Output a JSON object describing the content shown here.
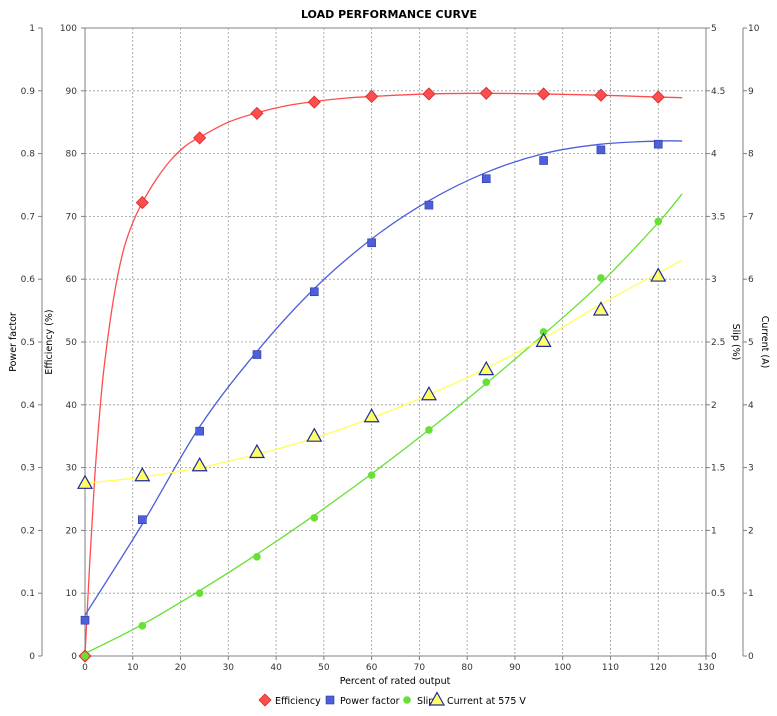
{
  "chart_data": {
    "type": "line",
    "title": "LOAD PERFORMANCE CURVE",
    "xlabel": "Percent of rated output",
    "xlim": [
      0,
      130
    ],
    "x_ticks": [
      "0",
      "10",
      "20",
      "30",
      "40",
      "50",
      "60",
      "70",
      "80",
      "90",
      "100",
      "110",
      "120",
      "130"
    ],
    "y_axes": [
      {
        "label": "Power factor",
        "side": "left-outer",
        "range": [
          0,
          1
        ],
        "ticks": [
          "0",
          "0.1",
          "0.2",
          "0.3",
          "0.4",
          "0.5",
          "0.6",
          "0.7",
          "0.8",
          "0.9",
          "1"
        ]
      },
      {
        "label": "Efficiency (%)",
        "side": "left-inner",
        "range": [
          0,
          100
        ],
        "ticks": [
          "0",
          "10",
          "20",
          "30",
          "40",
          "50",
          "60",
          "70",
          "80",
          "90",
          "100"
        ]
      },
      {
        "label": "Slip (%)",
        "side": "right-inner",
        "range": [
          0,
          5
        ],
        "ticks": [
          "0",
          "0.5",
          "1",
          "1.5",
          "2",
          "2.5",
          "3",
          "3.5",
          "4",
          "4.5",
          "5"
        ]
      },
      {
        "label": "Current (A)",
        "side": "right-outer",
        "range": [
          0,
          10
        ],
        "ticks": [
          "0",
          "1",
          "2",
          "3",
          "4",
          "5",
          "6",
          "7",
          "8",
          "9",
          "10"
        ]
      }
    ],
    "grid": true,
    "legend_position": "bottom",
    "series": [
      {
        "name": "Efficiency",
        "axis": 1,
        "color": "#ff4d4d",
        "marker": "diamond",
        "points": [
          [
            0,
            0
          ],
          [
            12,
            72.2
          ],
          [
            24,
            82.5
          ],
          [
            36,
            86.4
          ],
          [
            48,
            88.2
          ],
          [
            60,
            89.1
          ],
          [
            72,
            89.5
          ],
          [
            84,
            89.6
          ],
          [
            96,
            89.5
          ],
          [
            108,
            89.3
          ],
          [
            120,
            89
          ]
        ],
        "curve": [
          [
            0,
            0
          ],
          [
            1,
            15
          ],
          [
            2,
            28
          ],
          [
            3,
            38
          ],
          [
            4,
            46
          ],
          [
            6,
            57
          ],
          [
            8,
            64.5
          ],
          [
            10,
            69
          ],
          [
            12,
            72.2
          ],
          [
            15,
            76
          ],
          [
            18,
            79
          ],
          [
            21,
            81.2
          ],
          [
            24,
            82.6
          ],
          [
            30,
            85
          ],
          [
            36,
            86.5
          ],
          [
            42,
            87.6
          ],
          [
            48,
            88.3
          ],
          [
            54,
            88.8
          ],
          [
            60,
            89.1
          ],
          [
            72,
            89.5
          ],
          [
            84,
            89.6
          ],
          [
            96,
            89.5
          ],
          [
            108,
            89.3
          ],
          [
            120,
            89
          ],
          [
            125,
            88.9
          ]
        ]
      },
      {
        "name": "Power factor",
        "axis": 0,
        "color": "#4d5fd9",
        "marker": "square",
        "points": [
          [
            0,
            0.057
          ],
          [
            12,
            0.217
          ],
          [
            24,
            0.358
          ],
          [
            36,
            0.48
          ],
          [
            48,
            0.58
          ],
          [
            60,
            0.658
          ],
          [
            72,
            0.718
          ],
          [
            84,
            0.76
          ],
          [
            96,
            0.789
          ],
          [
            108,
            0.806
          ],
          [
            120,
            0.815
          ]
        ],
        "curve": [
          [
            0,
            0.065
          ],
          [
            12,
            0.21
          ],
          [
            24,
            0.365
          ],
          [
            36,
            0.485
          ],
          [
            48,
            0.585
          ],
          [
            60,
            0.664
          ],
          [
            72,
            0.725
          ],
          [
            84,
            0.77
          ],
          [
            96,
            0.8
          ],
          [
            108,
            0.815
          ],
          [
            120,
            0.82
          ],
          [
            125,
            0.82
          ]
        ]
      },
      {
        "name": "Slip",
        "axis": 2,
        "color": "#66e033",
        "marker": "circle",
        "points": [
          [
            0,
            0
          ],
          [
            12,
            0.24
          ],
          [
            24,
            0.5
          ],
          [
            36,
            0.79
          ],
          [
            48,
            1.1
          ],
          [
            60,
            1.44
          ],
          [
            72,
            1.8
          ],
          [
            84,
            2.18
          ],
          [
            96,
            2.58
          ],
          [
            108,
            3.01
          ],
          [
            120,
            3.46
          ]
        ],
        "curve": [
          [
            0,
            0.02
          ],
          [
            12,
            0.25
          ],
          [
            24,
            0.52
          ],
          [
            36,
            0.81
          ],
          [
            48,
            1.12
          ],
          [
            60,
            1.45
          ],
          [
            72,
            1.8
          ],
          [
            84,
            2.17
          ],
          [
            96,
            2.56
          ],
          [
            108,
            2.97
          ],
          [
            120,
            3.45
          ],
          [
            125,
            3.68
          ]
        ]
      },
      {
        "name": "Current at 575 V",
        "axis": 3,
        "color": "#ffff66",
        "curve_color": "#ffff55",
        "marker": "triangle",
        "points": [
          [
            0,
            2.75
          ],
          [
            12,
            2.87
          ],
          [
            24,
            3.03
          ],
          [
            36,
            3.24
          ],
          [
            48,
            3.5
          ],
          [
            60,
            3.81
          ],
          [
            72,
            4.16
          ],
          [
            84,
            4.56
          ],
          [
            96,
            5.01
          ],
          [
            108,
            5.51
          ],
          [
            120,
            6.05
          ]
        ],
        "curve": [
          [
            0,
            2.75
          ],
          [
            12,
            2.85
          ],
          [
            24,
            3.0
          ],
          [
            36,
            3.21
          ],
          [
            48,
            3.47
          ],
          [
            60,
            3.79
          ],
          [
            72,
            4.16
          ],
          [
            84,
            4.58
          ],
          [
            96,
            5.06
          ],
          [
            108,
            5.6
          ],
          [
            120,
            6.1
          ],
          [
            125,
            6.3
          ]
        ]
      }
    ]
  }
}
